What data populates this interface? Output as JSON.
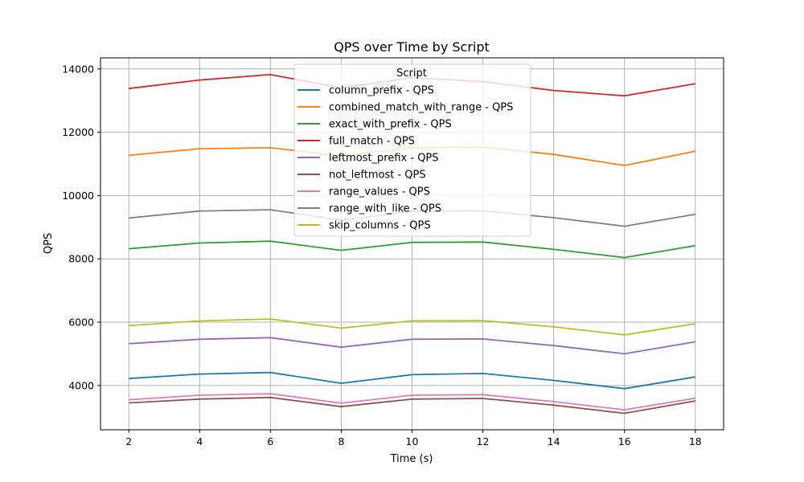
{
  "chart_data": {
    "type": "line",
    "title": "QPS over Time by Script",
    "xlabel": "Time (s)",
    "ylabel": "QPS",
    "x": [
      2,
      4,
      6,
      8,
      10,
      12,
      14,
      16,
      18
    ],
    "xlim": [
      1.2,
      18.8
    ],
    "ylim": [
      2600,
      14350
    ],
    "xticks": [
      2,
      4,
      6,
      8,
      10,
      12,
      14,
      16,
      18
    ],
    "yticks": [
      4000,
      6000,
      8000,
      10000,
      12000,
      14000
    ],
    "grid": true,
    "legend": {
      "title": "Script",
      "placement": "upper-center"
    },
    "series": [
      {
        "name": "column_prefix - QPS",
        "color": "#1f77b4",
        "values": [
          4220,
          4360,
          4410,
          4070,
          4340,
          4380,
          4160,
          3900,
          4270
        ]
      },
      {
        "name": "combined_match_with_range - QPS",
        "color": "#ff7f0e",
        "values": [
          11270,
          11480,
          11510,
          11250,
          11510,
          11530,
          11300,
          10950,
          11400
        ]
      },
      {
        "name": "exact_with_prefix - QPS",
        "color": "#2ca02c",
        "values": [
          8320,
          8500,
          8560,
          8270,
          8520,
          8530,
          8300,
          8040,
          8420
        ]
      },
      {
        "name": "full_match - QPS",
        "color": "#d62728",
        "values": [
          13380,
          13650,
          13820,
          13400,
          13720,
          13600,
          13320,
          13150,
          13530
        ]
      },
      {
        "name": "leftmost_prefix - QPS",
        "color": "#9467bd",
        "values": [
          5320,
          5460,
          5510,
          5210,
          5460,
          5470,
          5260,
          5000,
          5380
        ]
      },
      {
        "name": "not_leftmost - QPS",
        "color": "#8c564b",
        "values": [
          3450,
          3570,
          3620,
          3330,
          3570,
          3590,
          3380,
          3120,
          3510
        ]
      },
      {
        "name": "range_values - QPS",
        "color": "#e377c2",
        "values": [
          3550,
          3690,
          3740,
          3440,
          3690,
          3710,
          3490,
          3230,
          3600
        ]
      },
      {
        "name": "range_with_like - QPS",
        "color": "#7f7f7f",
        "values": [
          9290,
          9510,
          9550,
          9220,
          9500,
          9520,
          9300,
          9030,
          9410
        ]
      },
      {
        "name": "skip_columns - QPS",
        "color": "#bcbd22",
        "values": [
          5890,
          6040,
          6100,
          5810,
          6040,
          6050,
          5850,
          5600,
          5950
        ]
      }
    ]
  }
}
